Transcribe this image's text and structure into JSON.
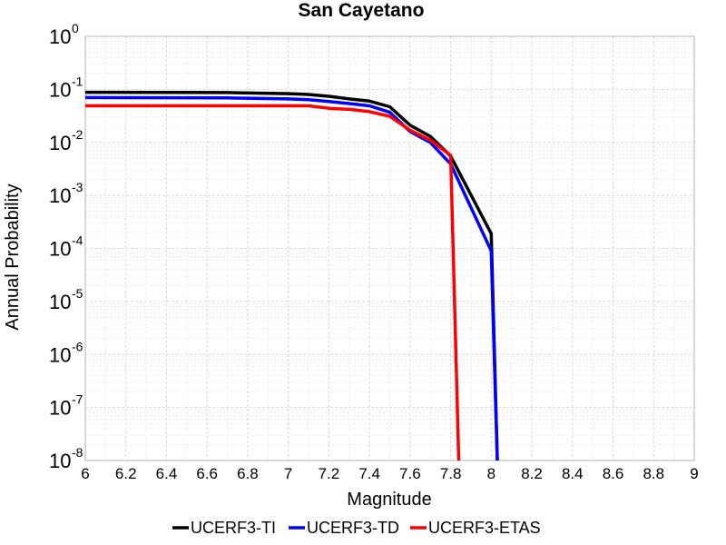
{
  "chart_data": {
    "type": "line",
    "title": "San Cayetano",
    "xlabel": "Magnitude",
    "ylabel": "Annual Probability",
    "xlim": [
      6,
      9
    ],
    "ylim": [
      1e-08,
      1
    ],
    "yscale": "log",
    "grid": true,
    "legend_position": "bottom",
    "x_ticks": [
      "6",
      "6.2",
      "6.4",
      "6.6",
      "6.8",
      "7",
      "7.2",
      "7.4",
      "7.6",
      "7.8",
      "8",
      "8.2",
      "8.4",
      "8.6",
      "8.8",
      "9"
    ],
    "y_ticks": [
      {
        "base": "10",
        "exp": "0"
      },
      {
        "base": "10",
        "exp": "-1"
      },
      {
        "base": "10",
        "exp": "-2"
      },
      {
        "base": "10",
        "exp": "-3"
      },
      {
        "base": "10",
        "exp": "-4"
      },
      {
        "base": "10",
        "exp": "-5"
      },
      {
        "base": "10",
        "exp": "-6"
      },
      {
        "base": "10",
        "exp": "-7"
      },
      {
        "base": "10",
        "exp": "-8"
      }
    ],
    "series": [
      {
        "name": "UCERF3-TI",
        "color": "#000000",
        "x": [
          6.0,
          6.7,
          7.0,
          7.1,
          7.2,
          7.3,
          7.4,
          7.5,
          7.6,
          7.7,
          7.8,
          8.0,
          8.03
        ],
        "y": [
          0.088,
          0.087,
          0.083,
          0.08,
          0.074,
          0.066,
          0.06,
          0.047,
          0.021,
          0.013,
          0.0055,
          0.00019,
          1e-08
        ]
      },
      {
        "name": "UCERF3-TD",
        "color": "#0000ff",
        "x": [
          6.0,
          6.7,
          7.0,
          7.1,
          7.2,
          7.3,
          7.4,
          7.5,
          7.6,
          7.7,
          7.8,
          8.0,
          8.03
        ],
        "y": [
          0.07,
          0.069,
          0.066,
          0.064,
          0.059,
          0.054,
          0.049,
          0.037,
          0.016,
          0.01,
          0.0039,
          9e-05,
          1e-08
        ]
      },
      {
        "name": "UCERF3-ETAS",
        "color": "#ff0000",
        "x": [
          6.0,
          6.7,
          7.0,
          7.1,
          7.2,
          7.3,
          7.4,
          7.5,
          7.6,
          7.7,
          7.8,
          7.84
        ],
        "y": [
          0.049,
          0.049,
          0.049,
          0.049,
          0.044,
          0.042,
          0.038,
          0.031,
          0.017,
          0.011,
          0.0057,
          1e-08
        ]
      }
    ]
  }
}
